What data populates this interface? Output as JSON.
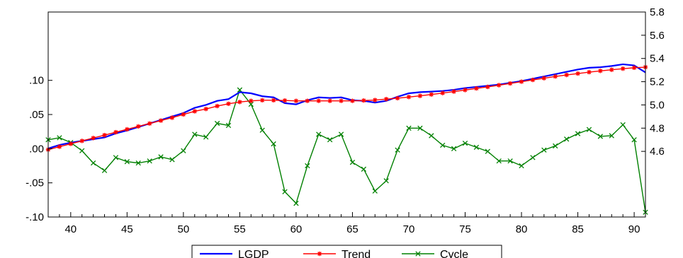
{
  "chart_data": {
    "type": "line",
    "title": "",
    "xlabel": "",
    "ylabel": "",
    "xlim": [
      38,
      91
    ],
    "x_ticks": [
      40,
      45,
      50,
      55,
      60,
      65,
      70,
      75,
      80,
      85,
      90
    ],
    "x_tick_labels": [
      "40",
      "45",
      "50",
      "55",
      "60",
      "65",
      "70",
      "75",
      "80",
      "85",
      "90"
    ],
    "left_axis": {
      "ylim": [
        -0.1,
        0.2
      ],
      "ticks": [
        -0.1,
        -0.05,
        0.0,
        0.05,
        0.1
      ],
      "tick_labels": [
        "-.10",
        "-.05",
        ".00",
        ".05",
        ".10"
      ]
    },
    "right_axis": {
      "ylim": [
        4.4,
        5.8
      ],
      "ticks": [
        4.6,
        4.8,
        5.0,
        5.2,
        5.4,
        5.6,
        5.8
      ],
      "tick_labels": [
        "4.6",
        "4.8",
        "5.0",
        "5.2",
        "5.4",
        "5.6",
        "5.8"
      ]
    },
    "grid": false,
    "legend_position": "bottom-center",
    "x": [
      38,
      39,
      40,
      41,
      42,
      43,
      44,
      45,
      46,
      47,
      48,
      49,
      50,
      51,
      52,
      53,
      54,
      55,
      56,
      57,
      58,
      59,
      60,
      61,
      62,
      63,
      64,
      65,
      66,
      67,
      68,
      69,
      70,
      71,
      72,
      73,
      74,
      75,
      76,
      77,
      78,
      79,
      80,
      81,
      82,
      83,
      84,
      85,
      86,
      87,
      88,
      89,
      90,
      91
    ],
    "series": [
      {
        "name": "LGDP",
        "axis": "right",
        "color": "#0000ff",
        "marker": "none",
        "values": [
          4.625,
          4.655,
          4.675,
          4.69,
          4.705,
          4.72,
          4.755,
          4.78,
          4.81,
          4.84,
          4.87,
          4.9,
          4.93,
          4.975,
          5.0,
          5.035,
          5.05,
          5.11,
          5.1,
          5.075,
          5.065,
          5.015,
          5.005,
          5.04,
          5.065,
          5.06,
          5.065,
          5.04,
          5.035,
          5.02,
          5.035,
          5.07,
          5.1,
          5.11,
          5.115,
          5.12,
          5.13,
          5.145,
          5.155,
          5.165,
          5.175,
          5.19,
          5.205,
          5.225,
          5.245,
          5.265,
          5.285,
          5.305,
          5.32,
          5.325,
          5.335,
          5.35,
          5.34,
          5.28
        ]
      },
      {
        "name": "Trend",
        "axis": "right",
        "color": "#ff0000",
        "marker": "star",
        "values": [
          4.615,
          4.64,
          4.665,
          4.69,
          4.715,
          4.74,
          4.765,
          4.79,
          4.815,
          4.84,
          4.865,
          4.89,
          4.918,
          4.945,
          4.965,
          4.99,
          5.01,
          5.025,
          5.035,
          5.04,
          5.04,
          5.038,
          5.035,
          5.035,
          5.035,
          5.035,
          5.035,
          5.035,
          5.038,
          5.042,
          5.05,
          5.058,
          5.068,
          5.078,
          5.09,
          5.102,
          5.115,
          5.128,
          5.142,
          5.155,
          5.17,
          5.185,
          5.2,
          5.215,
          5.23,
          5.245,
          5.258,
          5.27,
          5.282,
          5.293,
          5.303,
          5.312,
          5.32,
          5.325
        ]
      },
      {
        "name": "Cycle",
        "axis": "left",
        "color": "#008000",
        "marker": "x",
        "values": [
          0.013,
          0.016,
          0.009,
          -0.003,
          -0.021,
          -0.032,
          -0.013,
          -0.019,
          -0.021,
          -0.018,
          -0.012,
          -0.016,
          -0.003,
          0.021,
          0.017,
          0.037,
          0.034,
          0.086,
          0.065,
          0.027,
          0.007,
          -0.063,
          -0.08,
          -0.025,
          0.021,
          0.013,
          0.021,
          -0.02,
          -0.03,
          -0.062,
          -0.047,
          -0.002,
          0.03,
          0.03,
          0.019,
          0.005,
          0.0,
          0.008,
          0.002,
          -0.004,
          -0.018,
          -0.018,
          -0.025,
          -0.013,
          -0.002,
          0.004,
          0.014,
          0.022,
          0.028,
          0.018,
          0.019,
          0.035,
          0.013,
          -0.093
        ]
      }
    ]
  }
}
